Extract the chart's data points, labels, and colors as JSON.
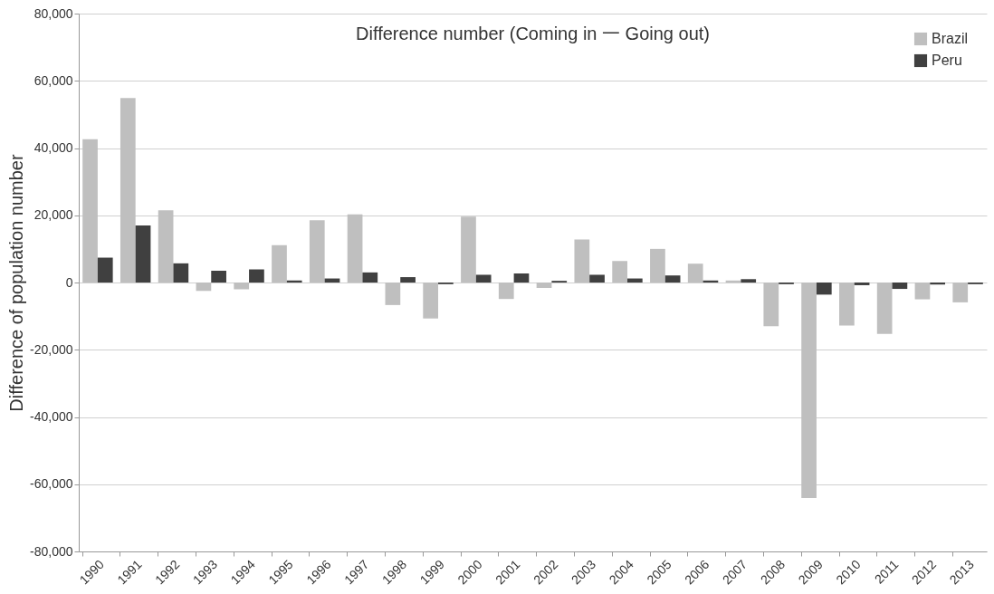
{
  "chart_data": {
    "type": "bar",
    "title": "Difference number (Coming  in 一 Going out)",
    "ylabel": "Difference of population number",
    "categories": [
      "1990",
      "1991",
      "1992",
      "1993",
      "1994",
      "1995",
      "1996",
      "1997",
      "1998",
      "1999",
      "2000",
      "2001",
      "2002",
      "2003",
      "2004",
      "2005",
      "2006",
      "2007",
      "2008",
      "2009",
      "2010",
      "2011",
      "2012",
      "2013"
    ],
    "series": [
      {
        "name": "Brazil",
        "color": "#bfbfbf",
        "values": [
          42600,
          54900,
          21500,
          -2500,
          -2000,
          11100,
          18500,
          20300,
          -6700,
          -10700,
          19600,
          -4900,
          -1600,
          12800,
          6400,
          10000,
          5600,
          600,
          -13000,
          -64100,
          -12800,
          -15300,
          -5000,
          -5900
        ]
      },
      {
        "name": "Peru",
        "color": "#404040",
        "values": [
          7400,
          17000,
          5700,
          3500,
          3900,
          600,
          1200,
          3000,
          1600,
          -500,
          2300,
          2700,
          500,
          2300,
          1200,
          2100,
          600,
          1000,
          -500,
          -3600,
          -800,
          -1900,
          -600,
          -500
        ]
      }
    ],
    "ylim": [
      -80000,
      80000
    ],
    "yticks": [
      {
        "value": -80000,
        "label": "-80,000"
      },
      {
        "value": -60000,
        "label": "-60,000"
      },
      {
        "value": -40000,
        "label": "-40,000"
      },
      {
        "value": -20000,
        "label": "-20,000"
      },
      0,
      {
        "value": 20000,
        "label": "20,000"
      },
      {
        "value": 40000,
        "label": "40,000"
      },
      {
        "value": 60000,
        "label": "60,000"
      },
      {
        "value": 80000,
        "label": "80,000"
      }
    ],
    "grid": "y",
    "legend": "top right"
  }
}
